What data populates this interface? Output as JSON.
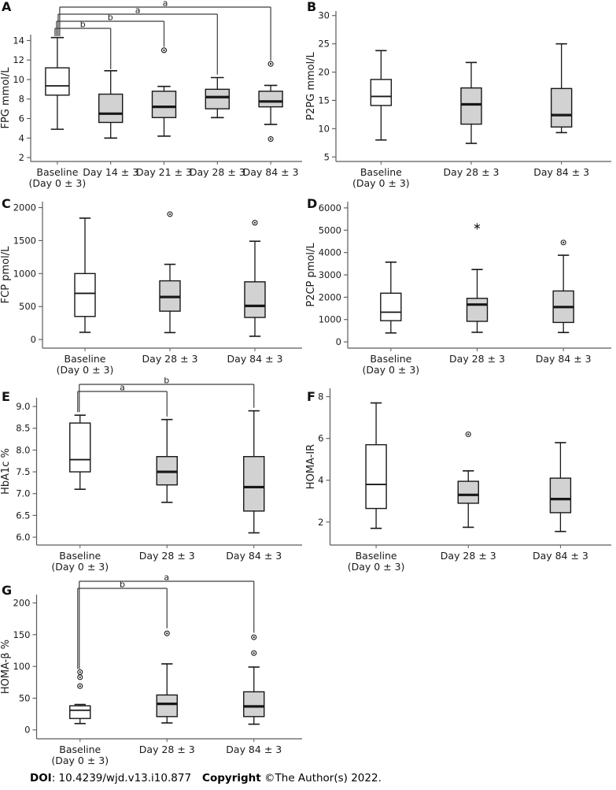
{
  "footer": {
    "doi_label": "DOI",
    "doi_text": ": 10.4239/wjd.v13.i10.877",
    "copyright_label": "Copyright",
    "copyright_text": " ©The Author(s) 2022."
  },
  "style": {
    "box_fill_gray": "#d2d2d2",
    "box_fill_white": "#ffffff",
    "box_stroke": "#171717",
    "axis_color": "#5a5a5a",
    "bracket_color": "#3c3c3c",
    "text_color": "#1a1a1a"
  },
  "chart_data": [
    {
      "panel": "A",
      "type": "box",
      "ylabel": "FPG mmol/L",
      "ylim": [
        1.6,
        14.6
      ],
      "ytick_values": [
        2,
        4,
        6,
        8,
        10,
        12,
        14
      ],
      "ytick_labels": [
        "2",
        "4",
        "6",
        "8",
        "10",
        "12",
        "14"
      ],
      "categories": [
        {
          "line1": "Baseline",
          "line2": "(Day 0 ± 3)"
        },
        {
          "line1": "Day 14 ± 3"
        },
        {
          "line1": "Day 21 ± 3"
        },
        {
          "line1": "Day 28 ± 3"
        },
        {
          "line1": "Day 84 ± 3"
        }
      ],
      "boxes": [
        {
          "low": 4.9,
          "q1": 8.4,
          "median": 9.35,
          "q3": 11.2,
          "high": 14.3,
          "fill": "white",
          "outliers": [],
          "extremes": []
        },
        {
          "low": 4.0,
          "q1": 5.6,
          "median": 6.5,
          "q3": 8.5,
          "high": 10.9,
          "fill": "gray",
          "outliers": [],
          "extremes": []
        },
        {
          "low": 4.2,
          "q1": 6.1,
          "median": 7.2,
          "q3": 8.8,
          "high": 9.3,
          "fill": "gray",
          "outliers": [
            13.0
          ],
          "extremes": []
        },
        {
          "low": 6.1,
          "q1": 7.0,
          "median": 8.2,
          "q3": 9.0,
          "high": 10.2,
          "fill": "gray",
          "outliers": [],
          "extremes": []
        },
        {
          "low": 5.4,
          "q1": 7.2,
          "median": 7.75,
          "q3": 8.8,
          "high": 9.4,
          "fill": "gray",
          "outliers": [
            11.6,
            3.9
          ],
          "extremes": []
        }
      ],
      "brackets": [
        {
          "from": 0,
          "to": 1,
          "label": "b",
          "level": 0,
          "left_drop": 14.45,
          "right_drop": 11.05
        },
        {
          "from": 0,
          "to": 2,
          "label": "b",
          "level": 1,
          "left_drop": 14.45,
          "right_drop": 13.35
        },
        {
          "from": 0,
          "to": 3,
          "label": "a",
          "level": 2,
          "left_drop": 14.45,
          "right_drop": 10.5
        },
        {
          "from": 0,
          "to": 4,
          "label": "a",
          "level": 3,
          "left_drop": 14.45,
          "right_drop": 11.95
        }
      ]
    },
    {
      "panel": "B",
      "type": "box",
      "ylabel": "P2PG mmol/L",
      "ylim": [
        4.2,
        30.8
      ],
      "ytick_values": [
        5,
        10,
        15,
        20,
        25,
        30
      ],
      "ytick_labels": [
        "5",
        "10",
        "15",
        "20",
        "25",
        "30"
      ],
      "categories": [
        {
          "line1": "Baseline",
          "line2": "(Day 0 ± 3)"
        },
        {
          "line1": "Day 28 ± 3"
        },
        {
          "line1": "Day 84 ± 3"
        }
      ],
      "boxes": [
        {
          "low": 8.0,
          "q1": 14.1,
          "median": 15.7,
          "q3": 18.7,
          "high": 23.8,
          "fill": "white",
          "outliers": [],
          "extremes": []
        },
        {
          "low": 7.4,
          "q1": 10.8,
          "median": 14.3,
          "q3": 17.2,
          "high": 21.7,
          "fill": "gray",
          "outliers": [],
          "extremes": []
        },
        {
          "low": 9.3,
          "q1": 10.3,
          "median": 12.4,
          "q3": 17.1,
          "high": 25.0,
          "fill": "gray",
          "outliers": [],
          "extremes": []
        }
      ],
      "brackets": []
    },
    {
      "panel": "C",
      "type": "box",
      "ylabel": "FCP pmol/L",
      "ylim": [
        -130,
        2090
      ],
      "ytick_values": [
        0,
        500,
        1000,
        1500,
        2000
      ],
      "ytick_labels": [
        "0",
        "500",
        "1000",
        "1500",
        "2000"
      ],
      "categories": [
        {
          "line1": "Baseline",
          "line2": "(Day 0 ± 3)"
        },
        {
          "line1": "Day 28 ± 3"
        },
        {
          "line1": "Day 84 ± 3"
        }
      ],
      "boxes": [
        {
          "low": 110,
          "q1": 350,
          "median": 700,
          "q3": 1000,
          "high": 1840,
          "fill": "white",
          "outliers": [],
          "extremes": []
        },
        {
          "low": 105,
          "q1": 430,
          "median": 645,
          "q3": 890,
          "high": 1140,
          "fill": "gray",
          "outliers": [
            1900
          ],
          "extremes": []
        },
        {
          "low": 50,
          "q1": 335,
          "median": 510,
          "q3": 875,
          "high": 1490,
          "fill": "gray",
          "outliers": [
            1770
          ],
          "extremes": []
        }
      ],
      "brackets": []
    },
    {
      "panel": "D",
      "type": "box",
      "ylabel": "P2CP pmol/L",
      "ylim": [
        -280,
        6280
      ],
      "ytick_values": [
        0,
        1000,
        2000,
        3000,
        4000,
        5000,
        6000
      ],
      "ytick_labels": [
        "0",
        "1000",
        "2000",
        "3000",
        "4000",
        "5000",
        "6000"
      ],
      "categories": [
        {
          "line1": "Baseline",
          "line2": "(Day 0 ± 3)"
        },
        {
          "line1": "Day 28 ± 3"
        },
        {
          "line1": "Day 84 ± 3"
        }
      ],
      "boxes": [
        {
          "low": 400,
          "q1": 950,
          "median": 1330,
          "q3": 2180,
          "high": 3570,
          "fill": "white",
          "outliers": [],
          "extremes": []
        },
        {
          "low": 430,
          "q1": 920,
          "median": 1670,
          "q3": 1950,
          "high": 3240,
          "fill": "gray",
          "outliers": [],
          "extremes": [
            5170
          ]
        },
        {
          "low": 420,
          "q1": 870,
          "median": 1560,
          "q3": 2280,
          "high": 3880,
          "fill": "gray",
          "outliers": [
            4450
          ],
          "extremes": []
        }
      ],
      "brackets": []
    },
    {
      "panel": "E",
      "type": "box",
      "ylabel": "HbA1c %",
      "ylim": [
        5.82,
        9.2
      ],
      "ytick_values": [
        6.0,
        6.5,
        7.0,
        7.5,
        8.0,
        8.5,
        9.0
      ],
      "ytick_labels": [
        "6.0",
        "6.5",
        "7.0",
        "7.5",
        "8.0",
        "8.5",
        "9.0"
      ],
      "categories": [
        {
          "line1": "Baseline",
          "line2": "(Day 0 ± 3)"
        },
        {
          "line1": "Day 28 ± 3"
        },
        {
          "line1": "Day 84 ± 3"
        }
      ],
      "boxes": [
        {
          "low": 7.1,
          "q1": 7.5,
          "median": 7.78,
          "q3": 8.62,
          "high": 8.8,
          "fill": "white",
          "outliers": [],
          "extremes": []
        },
        {
          "low": 6.8,
          "q1": 7.2,
          "median": 7.5,
          "q3": 7.85,
          "high": 8.7,
          "fill": "gray",
          "outliers": [],
          "extremes": []
        },
        {
          "low": 6.1,
          "q1": 6.6,
          "median": 7.15,
          "q3": 7.85,
          "high": 8.9,
          "fill": "gray",
          "outliers": [],
          "extremes": []
        }
      ],
      "brackets": [
        {
          "from": 0,
          "to": 1,
          "label": "a",
          "level": 0,
          "left_drop": 8.87,
          "right_drop": 8.77
        },
        {
          "from": 0,
          "to": 2,
          "label": "b",
          "level": 1,
          "left_drop": 8.87,
          "right_drop": 8.97
        }
      ]
    },
    {
      "panel": "F",
      "type": "box",
      "ylabel": "HOMA-IR",
      "ylim": [
        0.9,
        8.4
      ],
      "ytick_values": [
        2,
        4,
        6,
        8
      ],
      "ytick_labels": [
        "2",
        "4",
        "6",
        "8"
      ],
      "categories": [
        {
          "line1": "Baseline",
          "line2": "(Day 0 ± 3)"
        },
        {
          "line1": "Day 28 ± 3"
        },
        {
          "line1": "Day 84 ± 3"
        }
      ],
      "boxes": [
        {
          "low": 1.7,
          "q1": 2.65,
          "median": 3.8,
          "q3": 5.7,
          "high": 7.7,
          "fill": "white",
          "outliers": [],
          "extremes": []
        },
        {
          "low": 1.75,
          "q1": 2.9,
          "median": 3.3,
          "q3": 3.95,
          "high": 4.45,
          "fill": "gray",
          "outliers": [
            6.2
          ],
          "extremes": []
        },
        {
          "low": 1.55,
          "q1": 2.45,
          "median": 3.1,
          "q3": 4.1,
          "high": 5.8,
          "fill": "gray",
          "outliers": [],
          "extremes": []
        }
      ],
      "brackets": []
    },
    {
      "panel": "G",
      "type": "box",
      "ylabel": "HOMA-β %",
      "ylim": [
        -14,
        213
      ],
      "ytick_values": [
        0,
        50,
        100,
        150,
        200
      ],
      "ytick_labels": [
        "0",
        "50",
        "100",
        "150",
        "200"
      ],
      "categories": [
        {
          "line1": "Baseline",
          "line2": "(Day 0 ± 3)"
        },
        {
          "line1": "Day 28 ± 3"
        },
        {
          "line1": "Day 84 ± 3"
        }
      ],
      "boxes": [
        {
          "low": 10,
          "q1": 18,
          "median": 31,
          "q3": 38,
          "high": 40,
          "fill": "white",
          "outliers": [
            69,
            83,
            91
          ],
          "extremes": []
        },
        {
          "low": 11,
          "q1": 21,
          "median": 41,
          "q3": 55,
          "high": 104,
          "fill": "gray",
          "outliers": [
            152
          ],
          "extremes": []
        },
        {
          "low": 9,
          "q1": 21,
          "median": 37,
          "q3": 60,
          "high": 99,
          "fill": "gray",
          "outliers": [
            121,
            146
          ],
          "extremes": []
        }
      ],
      "brackets": [
        {
          "from": 0,
          "to": 1,
          "label": "b",
          "level": 0,
          "left_drop": 96,
          "right_drop": 160
        },
        {
          "from": 0,
          "to": 2,
          "label": "a",
          "level": 1,
          "left_drop": 96,
          "right_drop": 153
        }
      ]
    }
  ]
}
